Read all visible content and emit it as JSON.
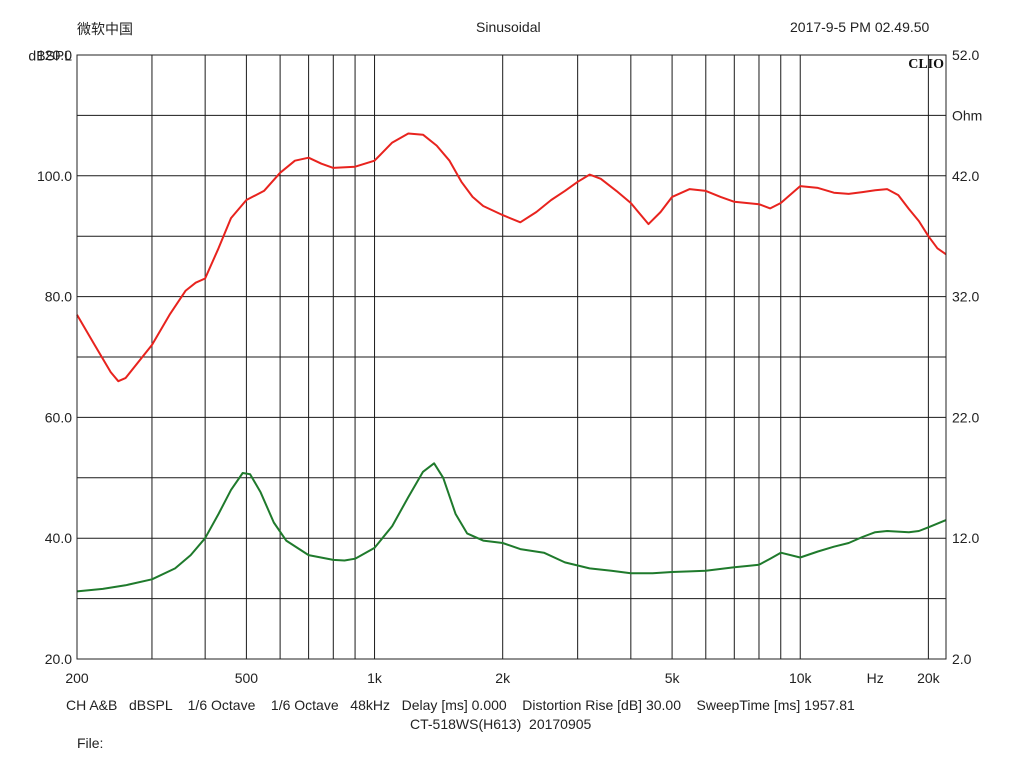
{
  "header": {
    "app_name": "微软中国",
    "mode": "Sinusoidal",
    "datetime": "2017-9-5 PM 02.49.50"
  },
  "brand": "CLIO",
  "footer": {
    "line1": "CH A&B   dBSPL    1/6 Octave    1/6 Octave   48kHz   Delay [ms] 0.000    Distortion Rise [dB] 30.00    SweepTime [ms] 1957.81",
    "line2": "CT-518WS(H613)  20170905",
    "file_label": "File:"
  },
  "chart_data": {
    "type": "line",
    "x_scale": "log",
    "xlim": [
      200,
      22000
    ],
    "x_tick_labels": [
      {
        "value": 200,
        "label": "200"
      },
      {
        "value": 500,
        "label": "500"
      },
      {
        "value": 1000,
        "label": "1k"
      },
      {
        "value": 2000,
        "label": "2k"
      },
      {
        "value": 5000,
        "label": "5k"
      },
      {
        "value": 10000,
        "label": "10k"
      },
      {
        "value": 20000,
        "label": "20k"
      }
    ],
    "x_unit_label": "Hz",
    "y_left": {
      "label": "dBSPL",
      "ylim": [
        20,
        120
      ],
      "ticks": [
        20,
        40,
        60,
        80,
        100,
        120
      ],
      "tick_labels": [
        "20.0",
        "40.0",
        "60.0",
        "80.0",
        "100.0",
        "120.0"
      ]
    },
    "y_right": {
      "label": "Ohm",
      "ylim": [
        2,
        52
      ],
      "ticks": [
        2,
        12,
        22,
        32,
        42,
        52
      ],
      "tick_labels": [
        "2.0",
        "12.0",
        "22.0",
        "32.0",
        "42.0",
        "52.0"
      ]
    },
    "grid": true,
    "series": [
      {
        "axis": "left",
        "color": "#e8231e",
        "points": [
          [
            200,
            77
          ],
          [
            220,
            72
          ],
          [
            240,
            67.5
          ],
          [
            250,
            66
          ],
          [
            260,
            66.5
          ],
          [
            300,
            72
          ],
          [
            330,
            77
          ],
          [
            360,
            81
          ],
          [
            380,
            82.3
          ],
          [
            400,
            83
          ],
          [
            430,
            88
          ],
          [
            460,
            93
          ],
          [
            500,
            96
          ],
          [
            550,
            97.5
          ],
          [
            600,
            100.5
          ],
          [
            650,
            102.5
          ],
          [
            700,
            103
          ],
          [
            750,
            102
          ],
          [
            800,
            101.3
          ],
          [
            900,
            101.5
          ],
          [
            1000,
            102.5
          ],
          [
            1100,
            105.5
          ],
          [
            1200,
            107
          ],
          [
            1300,
            106.8
          ],
          [
            1400,
            105
          ],
          [
            1500,
            102.5
          ],
          [
            1600,
            99
          ],
          [
            1700,
            96.5
          ],
          [
            1800,
            95
          ],
          [
            2000,
            93.5
          ],
          [
            2200,
            92.3
          ],
          [
            2400,
            94
          ],
          [
            2600,
            96
          ],
          [
            2800,
            97.5
          ],
          [
            3000,
            99
          ],
          [
            3200,
            100.2
          ],
          [
            3400,
            99.5
          ],
          [
            3700,
            97.5
          ],
          [
            4000,
            95.5
          ],
          [
            4400,
            92
          ],
          [
            4700,
            94
          ],
          [
            5000,
            96.5
          ],
          [
            5500,
            97.8
          ],
          [
            6000,
            97.5
          ],
          [
            6500,
            96.5
          ],
          [
            7000,
            95.7
          ],
          [
            8000,
            95.3
          ],
          [
            8500,
            94.6
          ],
          [
            9000,
            95.5
          ],
          [
            10000,
            98.3
          ],
          [
            11000,
            98
          ],
          [
            12000,
            97.2
          ],
          [
            13000,
            97
          ],
          [
            14000,
            97.3
          ],
          [
            15000,
            97.6
          ],
          [
            16000,
            97.8
          ],
          [
            17000,
            96.8
          ],
          [
            18000,
            94.5
          ],
          [
            19000,
            92.5
          ],
          [
            20000,
            90
          ],
          [
            21000,
            88
          ],
          [
            22000,
            87
          ]
        ]
      },
      {
        "axis": "right",
        "color": "#1f7a2c",
        "points": [
          [
            200,
            7.6
          ],
          [
            230,
            7.8
          ],
          [
            260,
            8.1
          ],
          [
            300,
            8.6
          ],
          [
            340,
            9.5
          ],
          [
            370,
            10.6
          ],
          [
            400,
            12
          ],
          [
            430,
            14
          ],
          [
            460,
            16
          ],
          [
            490,
            17.4
          ],
          [
            510,
            17.3
          ],
          [
            540,
            15.8
          ],
          [
            580,
            13.3
          ],
          [
            620,
            11.8
          ],
          [
            700,
            10.6
          ],
          [
            800,
            10.2
          ],
          [
            850,
            10.15
          ],
          [
            900,
            10.3
          ],
          [
            1000,
            11.2
          ],
          [
            1100,
            13
          ],
          [
            1200,
            15.4
          ],
          [
            1300,
            17.5
          ],
          [
            1380,
            18.2
          ],
          [
            1450,
            17
          ],
          [
            1550,
            14
          ],
          [
            1650,
            12.4
          ],
          [
            1800,
            11.8
          ],
          [
            2000,
            11.6
          ],
          [
            2200,
            11.1
          ],
          [
            2500,
            10.8
          ],
          [
            2800,
            10.0
          ],
          [
            3200,
            9.5
          ],
          [
            3600,
            9.3
          ],
          [
            4000,
            9.1
          ],
          [
            4500,
            9.1
          ],
          [
            5000,
            9.2
          ],
          [
            5500,
            9.25
          ],
          [
            6000,
            9.3
          ],
          [
            7000,
            9.6
          ],
          [
            7500,
            9.7
          ],
          [
            8000,
            9.8
          ],
          [
            8500,
            10.3
          ],
          [
            9000,
            10.8
          ],
          [
            10000,
            10.4
          ],
          [
            11000,
            10.9
          ],
          [
            12000,
            11.3
          ],
          [
            13000,
            11.6
          ],
          [
            14000,
            12.1
          ],
          [
            15000,
            12.5
          ],
          [
            16000,
            12.6
          ],
          [
            18000,
            12.5
          ],
          [
            19000,
            12.6
          ],
          [
            20000,
            12.9
          ],
          [
            22000,
            13.5
          ]
        ]
      }
    ]
  }
}
